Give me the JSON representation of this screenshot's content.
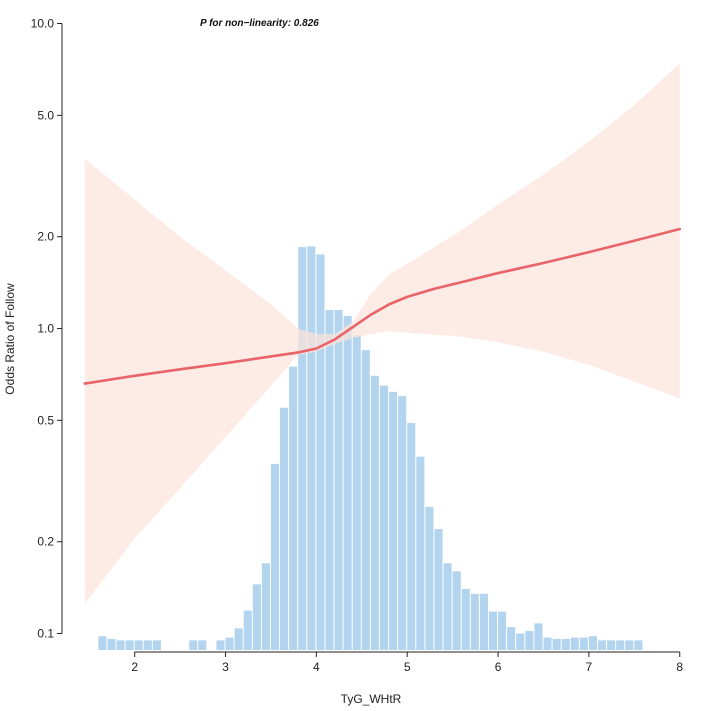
{
  "chart_data": {
    "type": "line",
    "xlabel": "TyG_WHtR",
    "ylabel": "Odds Ratio of Follow",
    "annotation": "P for non−linearity: 0.826",
    "xlim": [
      1.2,
      8.3
    ],
    "ylim": [
      0.087,
      11.5
    ],
    "yscale": "log",
    "x_ticks": [
      2,
      3,
      4,
      5,
      6,
      7,
      8
    ],
    "y_ticks": [
      0.1,
      0.2,
      0.5,
      1.0,
      2.0,
      5.0,
      10.0
    ],
    "y_tick_labels": [
      "0.1",
      "0.2",
      "0.5",
      "1.0",
      "2.0",
      "5.0",
      "10.0"
    ],
    "grid": false,
    "colors": {
      "line": "#e86468",
      "band": "#fce3dc",
      "bars": "#b3d4ee"
    },
    "series": [
      {
        "x": [
          1.45,
          2.0,
          2.5,
          3.0,
          3.5,
          3.8,
          4.0,
          4.2,
          4.4,
          4.6,
          4.8,
          5.0,
          5.3,
          5.6,
          6.0,
          6.5,
          7.0,
          7.5,
          8.0
        ],
        "values": [
          0.66,
          0.7,
          0.735,
          0.77,
          0.81,
          0.835,
          0.86,
          0.92,
          1.01,
          1.11,
          1.2,
          1.27,
          1.35,
          1.42,
          1.52,
          1.64,
          1.78,
          1.94,
          2.12
        ]
      }
    ],
    "ci_lower": [
      0.125,
      0.205,
      0.3,
      0.44,
      0.65,
      0.82,
      0.84,
      0.89,
      0.93,
      0.96,
      0.98,
      0.97,
      0.955,
      0.94,
      0.9,
      0.84,
      0.76,
      0.67,
      0.59
    ],
    "ci_upper": [
      3.6,
      2.65,
      2.0,
      1.55,
      1.2,
      1.0,
      0.96,
      0.96,
      1.05,
      1.3,
      1.5,
      1.63,
      1.85,
      2.1,
      2.55,
      3.2,
      4.1,
      5.4,
      7.4
    ],
    "histogram": {
      "bin_width": 0.1,
      "bin_starts": [
        1.6,
        1.7,
        1.8,
        1.9,
        2.0,
        2.1,
        2.2,
        2.6,
        2.7,
        2.9,
        3.0,
        3.1,
        3.2,
        3.3,
        3.4,
        3.5,
        3.6,
        3.7,
        3.8,
        3.9,
        4.0,
        4.1,
        4.2,
        4.3,
        4.4,
        4.5,
        4.6,
        4.7,
        4.8,
        4.9,
        5.0,
        5.1,
        5.2,
        5.3,
        5.4,
        5.5,
        5.6,
        5.7,
        5.8,
        5.9,
        6.0,
        6.1,
        6.2,
        6.3,
        6.4,
        6.5,
        6.6,
        6.7,
        6.8,
        6.9,
        7.0,
        7.1,
        7.2,
        7.3,
        7.4,
        7.5
      ],
      "values": [
        0.098,
        0.096,
        0.095,
        0.095,
        0.095,
        0.095,
        0.095,
        0.095,
        0.095,
        0.095,
        0.097,
        0.104,
        0.119,
        0.145,
        0.17,
        0.36,
        0.55,
        0.75,
        1.85,
        1.86,
        1.75,
        1.15,
        1.15,
        1.1,
        0.95,
        0.85,
        0.7,
        0.65,
        0.62,
        0.6,
        0.49,
        0.38,
        0.26,
        0.22,
        0.17,
        0.16,
        0.14,
        0.135,
        0.135,
        0.118,
        0.118,
        0.105,
        0.1,
        0.102,
        0.108,
        0.097,
        0.096,
        0.096,
        0.097,
        0.097,
        0.098,
        0.095,
        0.095,
        0.095,
        0.095,
        0.095
      ]
    }
  }
}
